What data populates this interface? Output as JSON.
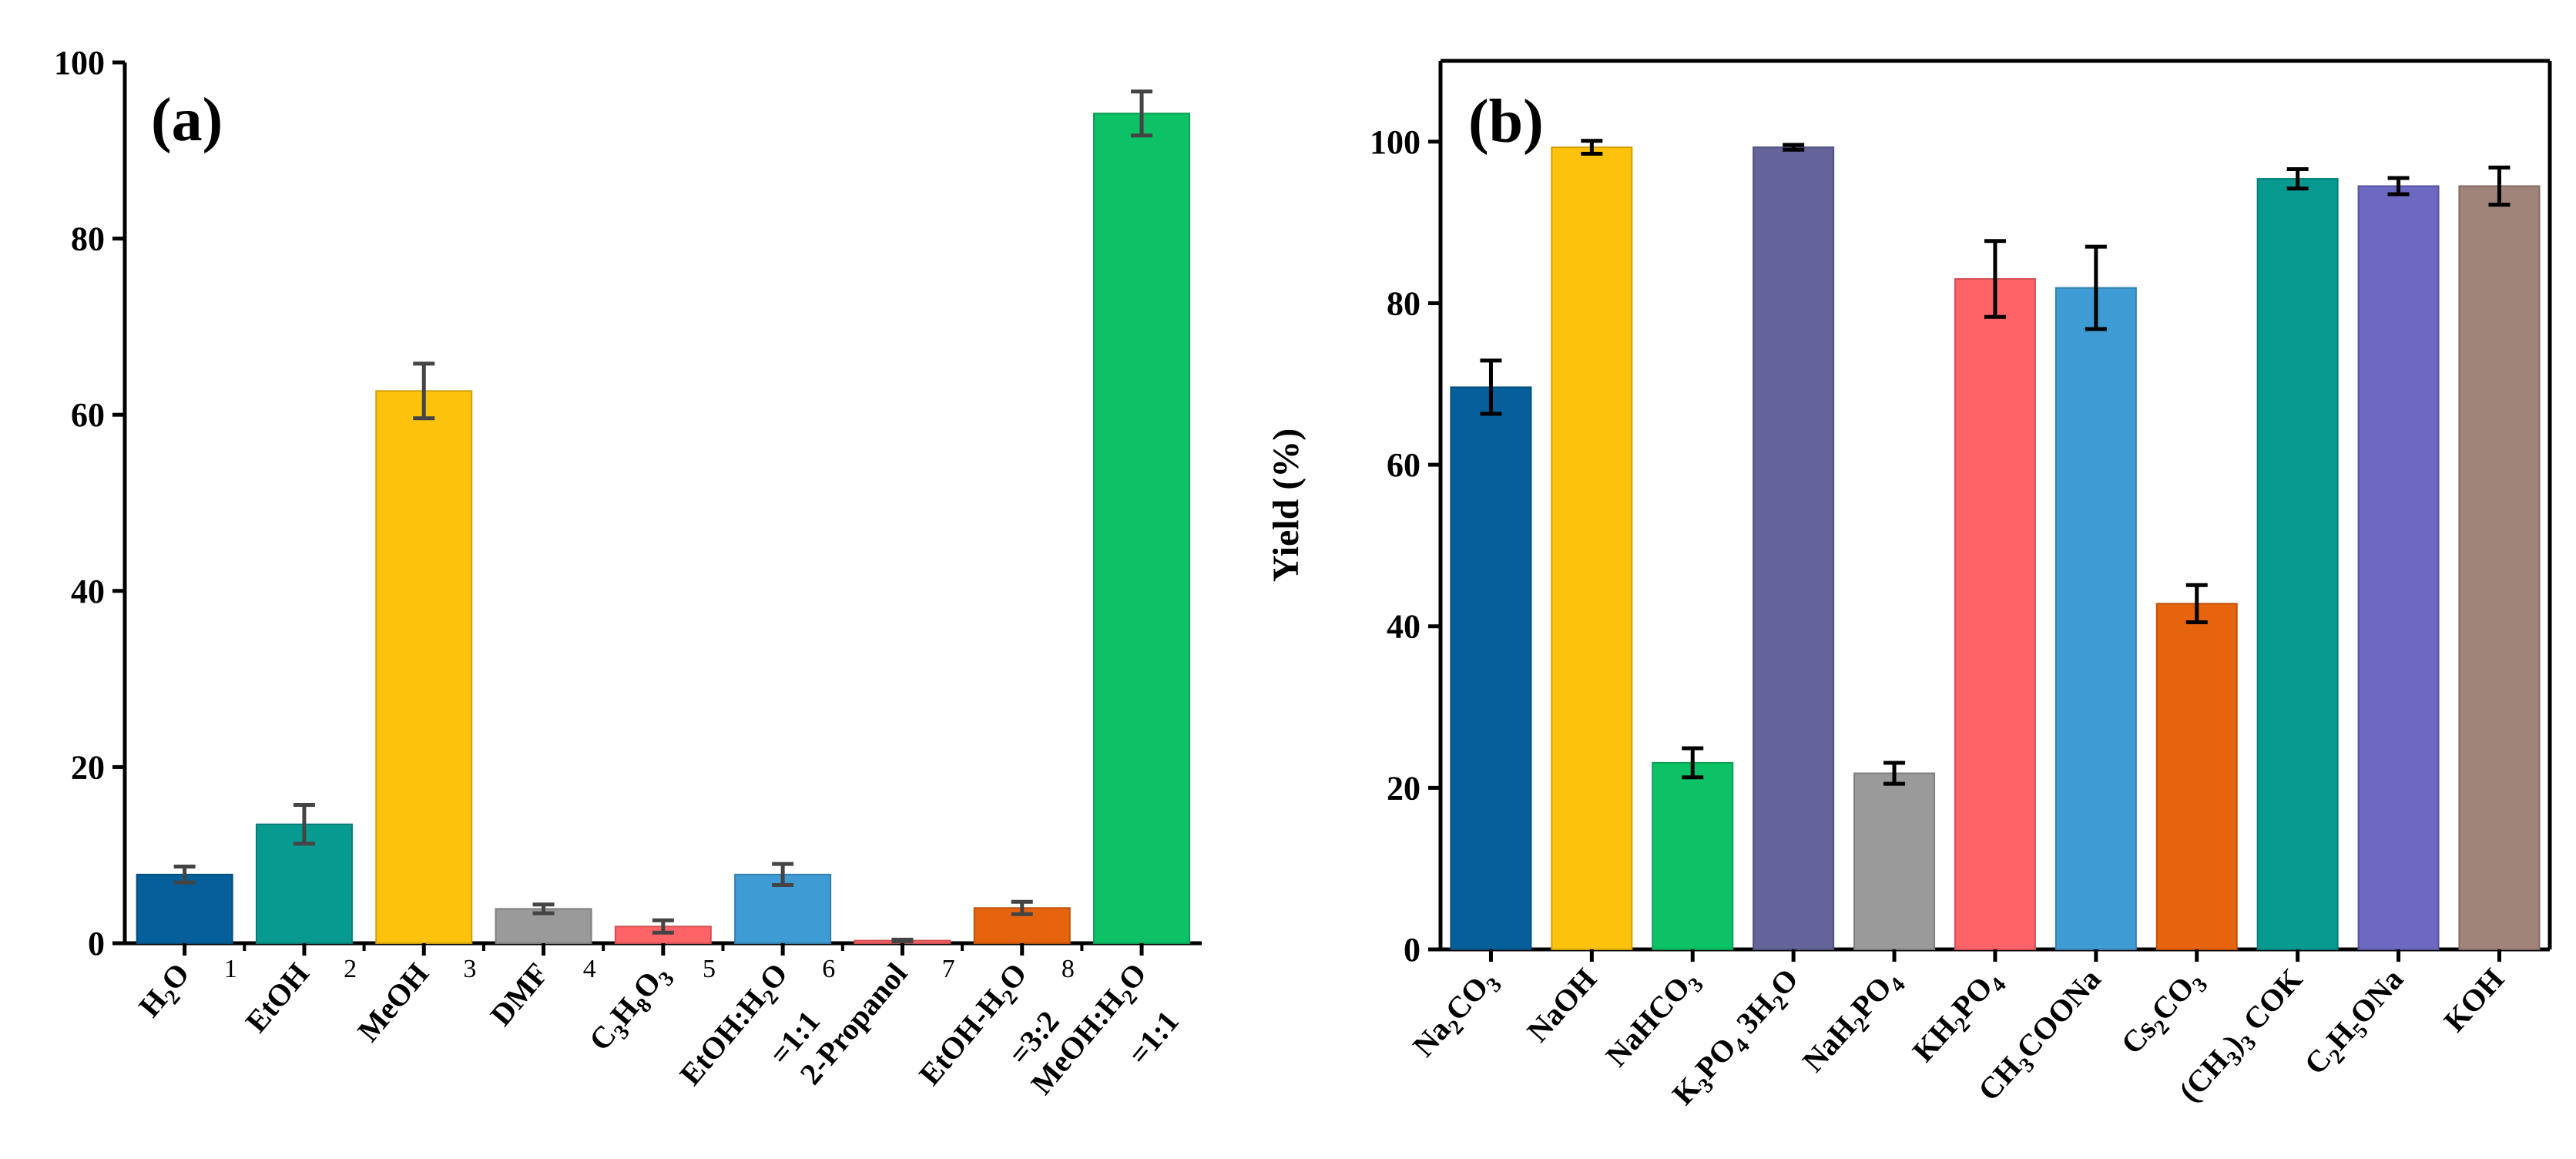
{
  "chart_data": [
    {
      "type": "bar",
      "panel_label": "(a)",
      "ylabel": "",
      "ylim": [
        0,
        100
      ],
      "yticks": [
        0,
        20,
        40,
        60,
        80,
        100
      ],
      "grid": false,
      "categories": [
        {
          "id": "h2o",
          "lines": [
            [
              [
                "H",
                "n"
              ],
              [
                "2",
                "sub"
              ],
              [
                "O",
                "n"
              ]
            ]
          ]
        },
        {
          "id": "etoh",
          "lines": [
            [
              [
                "EtOH",
                "n"
              ]
            ]
          ]
        },
        {
          "id": "meoh",
          "lines": [
            [
              [
                "MeOH",
                "n"
              ]
            ]
          ]
        },
        {
          "id": "dmf",
          "lines": [
            [
              [
                "DMF",
                "n"
              ]
            ]
          ]
        },
        {
          "id": "c3h8o3",
          "lines": [
            [
              [
                "C",
                "n"
              ],
              [
                "3",
                "sub"
              ],
              [
                "H",
                "n"
              ],
              [
                "8",
                "sub"
              ],
              [
                "O",
                "n"
              ],
              [
                "3",
                "sub"
              ]
            ]
          ]
        },
        {
          "id": "etoh-h2o-1-1",
          "lines": [
            [
              [
                "EtOH:H",
                "n"
              ],
              [
                "2",
                "sub"
              ],
              [
                "O",
                "n"
              ]
            ],
            [
              [
                "=1:1",
                "n"
              ]
            ]
          ]
        },
        {
          "id": "2-propanol",
          "lines": [
            [
              [
                "2-Propanol",
                "n"
              ]
            ]
          ]
        },
        {
          "id": "etoh-h2o-3-2",
          "lines": [
            [
              [
                "EtOH-H",
                "n"
              ],
              [
                "2",
                "sub"
              ],
              [
                "O",
                "n"
              ]
            ],
            [
              [
                "=3:2",
                "n"
              ]
            ]
          ]
        },
        {
          "id": "meoh-h2o-1-1",
          "lines": [
            [
              [
                "MeOH:H",
                "n"
              ],
              [
                "2",
                "sub"
              ],
              [
                "O",
                "n"
              ]
            ],
            [
              [
                "=1:1",
                "n"
              ]
            ]
          ]
        }
      ],
      "values": [
        7.8,
        13.5,
        62.7,
        3.9,
        1.9,
        7.8,
        0.3,
        4.0,
        94.2
      ],
      "errors": [
        0.9,
        2.2,
        3.1,
        0.5,
        0.7,
        1.2,
        0.1,
        0.7,
        2.5
      ],
      "colors": [
        "#045f9a",
        "#079a91",
        "#fdc20b",
        "#9a9a9a",
        "#fe6367",
        "#3f9bd3",
        "#fe6367",
        "#e6640e",
        "#0cc166"
      ],
      "minor_tick_labels": [
        "1",
        "2",
        "3",
        "4",
        "5",
        "6",
        "7",
        "8"
      ]
    },
    {
      "type": "bar",
      "panel_label": "(b)",
      "ylabel": "Yield (%)",
      "ylim": [
        0,
        110
      ],
      "yticks": [
        0,
        20,
        40,
        60,
        80,
        100
      ],
      "grid": false,
      "categories": [
        {
          "id": "na2co3",
          "lines": [
            [
              [
                "Na",
                "n"
              ],
              [
                "2",
                "sub"
              ],
              [
                "CO",
                "n"
              ],
              [
                "3",
                "sub"
              ]
            ]
          ]
        },
        {
          "id": "naoh",
          "lines": [
            [
              [
                "NaOH",
                "n"
              ]
            ]
          ]
        },
        {
          "id": "nahco3",
          "lines": [
            [
              [
                "NaHCO",
                "n"
              ],
              [
                "3",
                "sub"
              ]
            ]
          ]
        },
        {
          "id": "k3po4-3h2o",
          "lines": [
            [
              [
                "K",
                "n"
              ],
              [
                "3",
                "sub"
              ],
              [
                "PO",
                "n"
              ],
              [
                "4",
                "sub"
              ],
              [
                " 3H",
                "n"
              ],
              [
                "2",
                "sub"
              ],
              [
                "O",
                "n"
              ]
            ]
          ]
        },
        {
          "id": "nah2po4",
          "lines": [
            [
              [
                "NaH",
                "n"
              ],
              [
                "2",
                "sub"
              ],
              [
                "PO",
                "n"
              ],
              [
                "4",
                "sub"
              ]
            ]
          ]
        },
        {
          "id": "kh2po4",
          "lines": [
            [
              [
                "KH",
                "n"
              ],
              [
                "2",
                "sub"
              ],
              [
                "PO",
                "n"
              ],
              [
                "4",
                "sub"
              ]
            ]
          ]
        },
        {
          "id": "ch3coona",
          "lines": [
            [
              [
                "CH",
                "n"
              ],
              [
                "3",
                "sub"
              ],
              [
                "COONa",
                "n"
              ]
            ]
          ]
        },
        {
          "id": "cs2co3",
          "lines": [
            [
              [
                "Cs",
                "n"
              ],
              [
                "2",
                "sub"
              ],
              [
                "CO",
                "n"
              ],
              [
                "3",
                "sub"
              ]
            ]
          ]
        },
        {
          "id": "ch3-3cok",
          "lines": [
            [
              [
                "(CH",
                "n"
              ],
              [
                "3",
                "sub"
              ],
              [
                ")",
                "n"
              ],
              [
                "3",
                "sub"
              ],
              [
                " COK",
                "n"
              ]
            ]
          ]
        },
        {
          "id": "c2h5ona",
          "lines": [
            [
              [
                "C",
                "n"
              ],
              [
                "2",
                "sub"
              ],
              [
                "H",
                "n"
              ],
              [
                "5",
                "sub"
              ],
              [
                "ONa",
                "n"
              ]
            ]
          ]
        },
        {
          "id": "koh",
          "lines": [
            [
              [
                "KOH",
                "n"
              ]
            ]
          ]
        }
      ],
      "values": [
        69.6,
        99.3,
        23.1,
        99.3,
        21.8,
        83.0,
        81.9,
        42.8,
        95.4,
        94.5,
        94.5
      ],
      "errors": [
        3.3,
        0.8,
        1.8,
        0.3,
        1.3,
        4.7,
        5.1,
        2.3,
        1.2,
        1.0,
        2.3
      ],
      "colors": [
        "#045f9a",
        "#fdc20b",
        "#0cc166",
        "#64639a",
        "#9a9a9a",
        "#fe6367",
        "#3f9bd3",
        "#e6640e",
        "#079a91",
        "#6d68c2",
        "#a08479"
      ]
    }
  ]
}
